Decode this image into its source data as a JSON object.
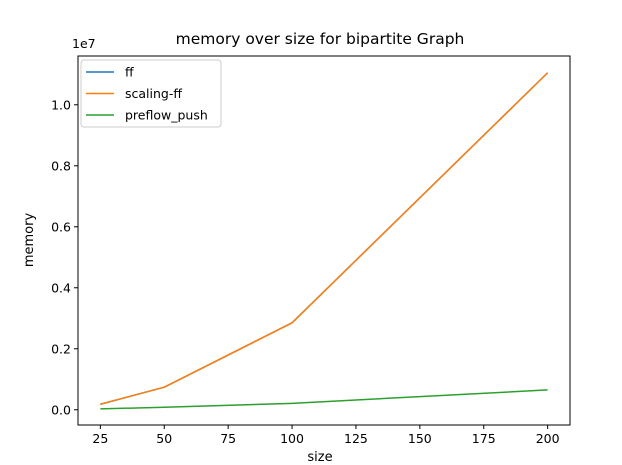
{
  "chart_data": {
    "type": "line",
    "title": "memory over size for bipartite Graph",
    "xlabel": "size",
    "ylabel": "memory",
    "y_offset_label": "1e7",
    "x": [
      25,
      50,
      100,
      200
    ],
    "series": [
      {
        "name": "ff",
        "color": "#1f77b4",
        "values": [
          0.18,
          0.74,
          2.85,
          11.05
        ]
      },
      {
        "name": "scaling-ff",
        "color": "#ff7f0e",
        "values": [
          0.18,
          0.74,
          2.85,
          11.05
        ]
      },
      {
        "name": "preflow_push",
        "color": "#2ca02c",
        "values": [
          0.03,
          0.08,
          0.21,
          0.65
        ]
      }
    ],
    "xlim": [
      16.25,
      208.75
    ],
    "ylim": [
      -0.5,
      11.6
    ],
    "xticks": [
      25,
      50,
      75,
      100,
      125,
      150,
      175,
      200
    ],
    "xtick_labels": [
      "25",
      "50",
      "75",
      "100",
      "125",
      "150",
      "175",
      "200"
    ],
    "yticks": [
      0,
      2,
      4,
      6,
      8,
      10
    ],
    "ytick_labels": [
      "0.0",
      "0.2",
      "0.4",
      "0.6",
      "0.8",
      "1.0"
    ],
    "grid": false,
    "legend_position": "upper-left"
  }
}
